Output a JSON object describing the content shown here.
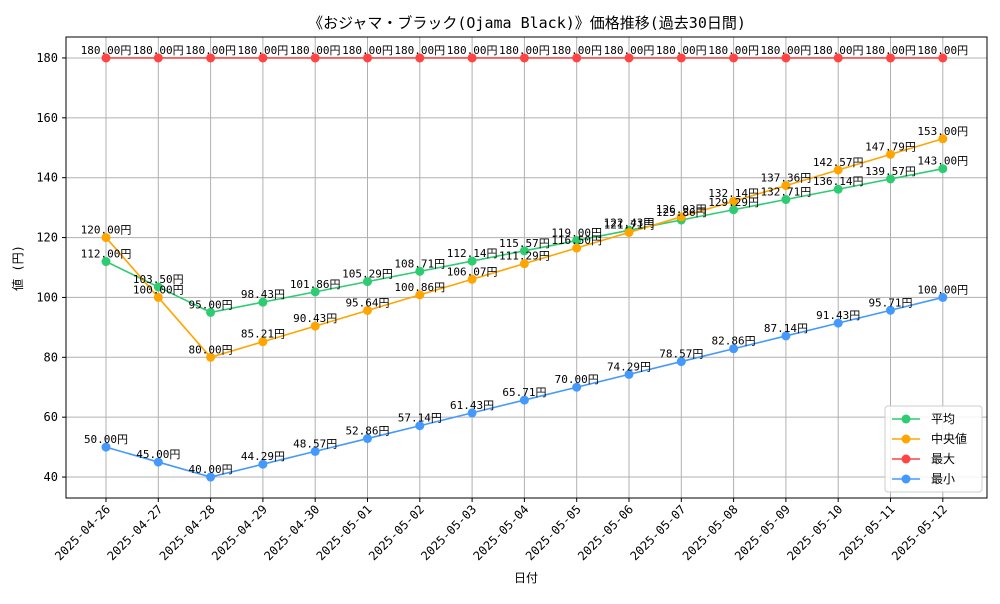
{
  "chart_data": {
    "type": "line",
    "title": "《おジャマ・ブラック(Ojama Black)》価格推移(過去30日間)",
    "xlabel": "日付",
    "ylabel": "値 (円)",
    "ylim": [
      33,
      187
    ],
    "yticks": [
      40,
      60,
      80,
      100,
      120,
      140,
      160,
      180
    ],
    "grid": true,
    "legend_position": "bottom-right",
    "value_suffix": "円",
    "categories": [
      "2025-04-26",
      "2025-04-27",
      "2025-04-28",
      "2025-04-29",
      "2025-04-30",
      "2025-05-01",
      "2025-05-02",
      "2025-05-03",
      "2025-05-04",
      "2025-05-05",
      "2025-05-06",
      "2025-05-07",
      "2025-05-08",
      "2025-05-09",
      "2025-05-10",
      "2025-05-11",
      "2025-05-12"
    ],
    "series": [
      {
        "name": "平均",
        "color": "#2ecc71",
        "values": [
          112.0,
          103.5,
          95.0,
          98.43,
          101.86,
          105.29,
          108.71,
          112.14,
          115.57,
          119.0,
          122.43,
          125.86,
          129.29,
          132.71,
          136.14,
          139.57,
          143.0
        ]
      },
      {
        "name": "中央値",
        "color": "#ffa500",
        "values": [
          120.0,
          100.0,
          80.0,
          85.21,
          90.43,
          95.64,
          100.86,
          106.07,
          111.29,
          116.5,
          121.71,
          126.93,
          132.14,
          137.36,
          142.57,
          147.79,
          153.0
        ]
      },
      {
        "name": "最大",
        "color": "#ff4444",
        "values": [
          180.0,
          180.0,
          180.0,
          180.0,
          180.0,
          180.0,
          180.0,
          180.0,
          180.0,
          180.0,
          180.0,
          180.0,
          180.0,
          180.0,
          180.0,
          180.0,
          180.0
        ]
      },
      {
        "name": "最小",
        "color": "#4499ff",
        "values": [
          50.0,
          45.0,
          40.0,
          44.29,
          48.57,
          52.86,
          57.14,
          61.43,
          65.71,
          70.0,
          74.29,
          78.57,
          82.86,
          87.14,
          91.43,
          95.71,
          100.0
        ]
      }
    ]
  }
}
